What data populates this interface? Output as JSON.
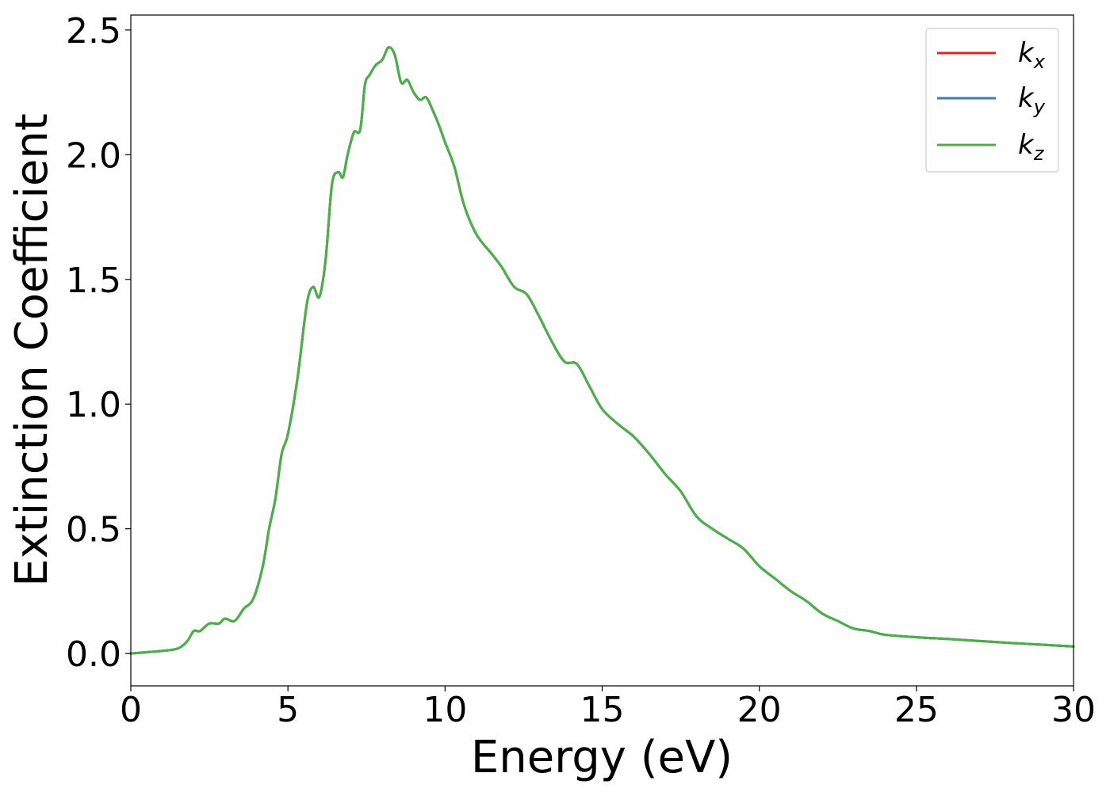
{
  "chart_data": {
    "type": "line",
    "title": "",
    "xlabel": "Energy (eV)",
    "ylabel": "Extinction Coefficient",
    "xlim": [
      0,
      30
    ],
    "ylim": [
      -0.13,
      2.56
    ],
    "xticks": [
      0,
      5,
      10,
      15,
      20,
      25,
      30
    ],
    "xtick_labels": [
      "0",
      "5",
      "10",
      "15",
      "20",
      "25",
      "30"
    ],
    "yticks": [
      0.0,
      0.5,
      1.0,
      1.5,
      2.0,
      2.5
    ],
    "ytick_labels": [
      "0.0",
      "0.5",
      "1.0",
      "1.5",
      "2.0",
      "2.5"
    ],
    "grid": false,
    "legend_position": "top-right",
    "x": [
      0,
      0.5,
      1.0,
      1.5,
      1.8,
      2.0,
      2.2,
      2.5,
      2.8,
      3.0,
      3.3,
      3.6,
      3.9,
      4.2,
      4.4,
      4.6,
      4.8,
      5.0,
      5.3,
      5.6,
      5.8,
      6.0,
      6.2,
      6.4,
      6.6,
      6.75,
      6.9,
      7.1,
      7.3,
      7.45,
      7.6,
      7.8,
      8.0,
      8.2,
      8.4,
      8.6,
      8.8,
      9.0,
      9.2,
      9.4,
      9.6,
      9.8,
      10.0,
      10.3,
      10.6,
      11.0,
      11.5,
      11.8,
      12.2,
      12.6,
      13.0,
      13.4,
      13.8,
      14.2,
      14.6,
      15.0,
      15.5,
      16.0,
      16.5,
      17.0,
      17.5,
      18.0,
      18.5,
      19.0,
      19.5,
      20.0,
      20.5,
      21.0,
      21.5,
      22.0,
      22.5,
      23.0,
      23.5,
      24.0,
      25.0,
      26.0,
      27.0,
      28.0,
      29.0,
      30.0
    ],
    "series": [
      {
        "name": "k_x",
        "color": "#d62728",
        "y": [
          0.0,
          0.005,
          0.01,
          0.02,
          0.05,
          0.09,
          0.09,
          0.12,
          0.12,
          0.14,
          0.13,
          0.18,
          0.22,
          0.35,
          0.5,
          0.62,
          0.8,
          0.88,
          1.1,
          1.4,
          1.47,
          1.43,
          1.58,
          1.88,
          1.93,
          1.91,
          2.0,
          2.09,
          2.1,
          2.28,
          2.32,
          2.36,
          2.38,
          2.43,
          2.4,
          2.29,
          2.3,
          2.25,
          2.22,
          2.23,
          2.18,
          2.12,
          2.05,
          1.95,
          1.8,
          1.68,
          1.6,
          1.55,
          1.47,
          1.44,
          1.35,
          1.25,
          1.17,
          1.16,
          1.07,
          0.98,
          0.92,
          0.87,
          0.8,
          0.72,
          0.65,
          0.55,
          0.5,
          0.46,
          0.42,
          0.35,
          0.3,
          0.25,
          0.21,
          0.16,
          0.13,
          0.1,
          0.09,
          0.075,
          0.065,
          0.058,
          0.05,
          0.042,
          0.035,
          0.028
        ]
      },
      {
        "name": "k_y",
        "color": "#377eb8",
        "y": [
          0.0,
          0.005,
          0.01,
          0.02,
          0.05,
          0.09,
          0.09,
          0.12,
          0.12,
          0.14,
          0.13,
          0.18,
          0.22,
          0.35,
          0.5,
          0.62,
          0.8,
          0.88,
          1.1,
          1.4,
          1.47,
          1.43,
          1.58,
          1.88,
          1.93,
          1.91,
          2.0,
          2.09,
          2.1,
          2.28,
          2.32,
          2.36,
          2.38,
          2.43,
          2.4,
          2.29,
          2.3,
          2.25,
          2.22,
          2.23,
          2.18,
          2.12,
          2.05,
          1.95,
          1.8,
          1.68,
          1.6,
          1.55,
          1.47,
          1.44,
          1.35,
          1.25,
          1.17,
          1.16,
          1.07,
          0.98,
          0.92,
          0.87,
          0.8,
          0.72,
          0.65,
          0.55,
          0.5,
          0.46,
          0.42,
          0.35,
          0.3,
          0.25,
          0.21,
          0.16,
          0.13,
          0.1,
          0.09,
          0.075,
          0.065,
          0.058,
          0.05,
          0.042,
          0.035,
          0.028
        ]
      },
      {
        "name": "k_z",
        "color": "#4daf4a",
        "y": [
          0.0,
          0.005,
          0.01,
          0.02,
          0.05,
          0.09,
          0.09,
          0.12,
          0.12,
          0.14,
          0.13,
          0.18,
          0.22,
          0.35,
          0.5,
          0.62,
          0.8,
          0.88,
          1.1,
          1.4,
          1.47,
          1.43,
          1.58,
          1.88,
          1.93,
          1.91,
          2.0,
          2.09,
          2.1,
          2.28,
          2.32,
          2.36,
          2.38,
          2.43,
          2.4,
          2.29,
          2.3,
          2.25,
          2.22,
          2.23,
          2.18,
          2.12,
          2.05,
          1.95,
          1.8,
          1.68,
          1.6,
          1.55,
          1.47,
          1.44,
          1.35,
          1.25,
          1.17,
          1.16,
          1.07,
          0.98,
          0.92,
          0.87,
          0.8,
          0.72,
          0.65,
          0.55,
          0.5,
          0.46,
          0.42,
          0.35,
          0.3,
          0.25,
          0.21,
          0.16,
          0.13,
          0.1,
          0.09,
          0.075,
          0.065,
          0.058,
          0.05,
          0.042,
          0.035,
          0.028
        ]
      }
    ],
    "legend": [
      {
        "base": "k",
        "sub": "x",
        "color": "#d62728"
      },
      {
        "base": "k",
        "sub": "y",
        "color": "#377eb8"
      },
      {
        "base": "k",
        "sub": "z",
        "color": "#4daf4a"
      }
    ]
  }
}
